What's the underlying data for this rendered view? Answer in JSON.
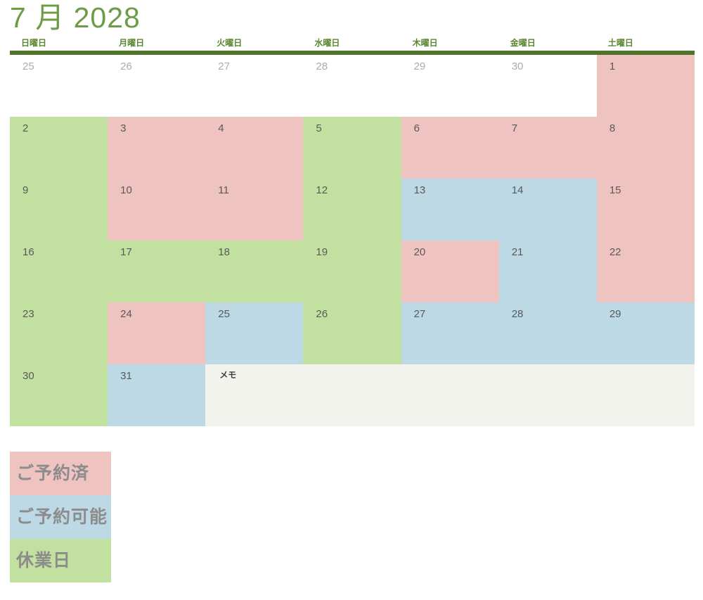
{
  "title": "7 月 2028",
  "weekday_headers": [
    "日曜日",
    "月曜日",
    "火曜日",
    "水曜日",
    "木曜日",
    "金曜日",
    "土曜日"
  ],
  "memo_label": "メモ",
  "colors": {
    "booked": "#efc3c0",
    "available": "#bcd9e5",
    "closed": "#c2e09f",
    "outside": "#ffffff",
    "memo_bg": "#f3f3ee",
    "title_green": "#6d9c49",
    "weekday_green": "#5c8632",
    "bar_green": "#507429",
    "day_number": "#595959",
    "outside_number": "#acacac",
    "legend_text": "#8c8c8c"
  },
  "weeks": [
    [
      {
        "day": "25",
        "status": "outside"
      },
      {
        "day": "26",
        "status": "outside"
      },
      {
        "day": "27",
        "status": "outside"
      },
      {
        "day": "28",
        "status": "outside"
      },
      {
        "day": "29",
        "status": "outside"
      },
      {
        "day": "30",
        "status": "outside"
      },
      {
        "day": "1",
        "status": "booked"
      }
    ],
    [
      {
        "day": "2",
        "status": "closed"
      },
      {
        "day": "3",
        "status": "booked"
      },
      {
        "day": "4",
        "status": "booked"
      },
      {
        "day": "5",
        "status": "closed"
      },
      {
        "day": "6",
        "status": "booked"
      },
      {
        "day": "7",
        "status": "booked"
      },
      {
        "day": "8",
        "status": "booked"
      }
    ],
    [
      {
        "day": "9",
        "status": "closed"
      },
      {
        "day": "10",
        "status": "booked"
      },
      {
        "day": "11",
        "status": "booked"
      },
      {
        "day": "12",
        "status": "closed"
      },
      {
        "day": "13",
        "status": "available"
      },
      {
        "day": "14",
        "status": "available"
      },
      {
        "day": "15",
        "status": "booked"
      }
    ],
    [
      {
        "day": "16",
        "status": "closed"
      },
      {
        "day": "17",
        "status": "closed"
      },
      {
        "day": "18",
        "status": "closed"
      },
      {
        "day": "19",
        "status": "closed"
      },
      {
        "day": "20",
        "status": "booked"
      },
      {
        "day": "21",
        "status": "available"
      },
      {
        "day": "22",
        "status": "booked"
      }
    ],
    [
      {
        "day": "23",
        "status": "closed"
      },
      {
        "day": "24",
        "status": "booked"
      },
      {
        "day": "25",
        "status": "available"
      },
      {
        "day": "26",
        "status": "closed"
      },
      {
        "day": "27",
        "status": "available"
      },
      {
        "day": "28",
        "status": "available"
      },
      {
        "day": "29",
        "status": "available"
      }
    ],
    [
      {
        "day": "30",
        "status": "closed"
      },
      {
        "day": "31",
        "status": "available"
      },
      {
        "memo": true
      }
    ]
  ],
  "legend": [
    {
      "label": "ご予約済",
      "status": "booked"
    },
    {
      "label": "ご予約可能",
      "status": "available"
    },
    {
      "label": "休業日",
      "status": "closed"
    }
  ]
}
